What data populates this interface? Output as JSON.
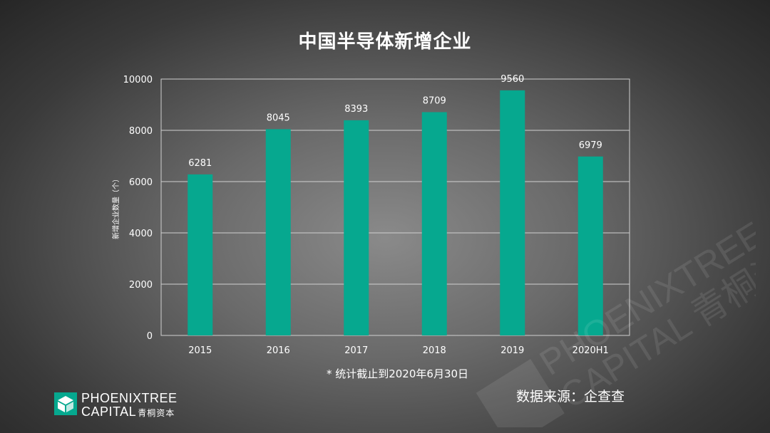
{
  "header": {
    "title": "中国半导体新增企业"
  },
  "chart_data": {
    "type": "bar",
    "title": "中国半导体新增企业",
    "xlabel": "",
    "ylabel": "新增企业数量（个）",
    "categories": [
      "2015",
      "2016",
      "2017",
      "2018",
      "2019",
      "2020H1"
    ],
    "values": [
      6281,
      8045,
      8393,
      8709,
      9560,
      6979
    ],
    "ylim": [
      0,
      10000
    ],
    "yticks": [
      0,
      2000,
      4000,
      6000,
      8000,
      10000
    ],
    "grid": true,
    "legend": "none",
    "bar_color": "#06a88f"
  },
  "footnote": "* 统计截止到2020年6月30日",
  "source": "数据来源：企查查",
  "logo": {
    "line1": "PHOENIXTREE",
    "line2": "CAPITAL",
    "cn": "青桐资本",
    "watermark_line1": "PHOENIXTREE",
    "watermark_line2": "CAPITAL 青桐资本"
  },
  "colors": {
    "accent": "#06a88f",
    "text": "#ffffff",
    "grid": "#d0d0d0"
  }
}
